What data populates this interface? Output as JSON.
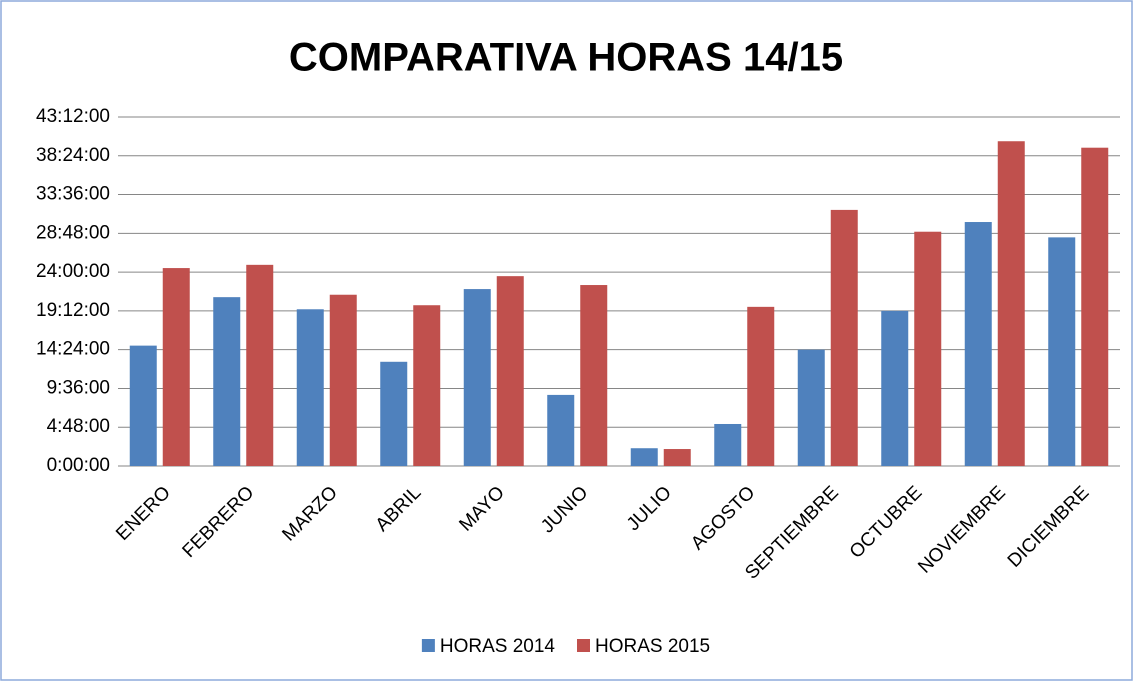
{
  "chart_data": {
    "type": "bar",
    "title": "COMPARATIVA HORAS 14/15",
    "categories": [
      "ENERO",
      "FEBRERO",
      "MARZO",
      "ABRIL",
      "MAYO",
      "JUNIO",
      "JULIO",
      "AGOSTO",
      "SEPTIEMBRE",
      "OCTUBRE",
      "NOVIEMBRE",
      "DICIEMBRE"
    ],
    "series": [
      {
        "name": "HORAS 2014",
        "color": "#4f81bd",
        "values": [
          14.9,
          20.9,
          19.4,
          12.9,
          21.9,
          8.8,
          2.2,
          5.2,
          14.4,
          19.2,
          30.2,
          28.3
        ]
      },
      {
        "name": "HORAS 2015",
        "color": "#c0504d",
        "values": [
          24.5,
          24.9,
          21.2,
          19.9,
          23.5,
          22.4,
          2.1,
          19.7,
          31.7,
          29.0,
          40.2,
          39.4
        ]
      }
    ],
    "ylim": [
      0,
      43.2
    ],
    "yticks": [
      {
        "value": 0,
        "label": "0:00:00"
      },
      {
        "value": 4.8,
        "label": "4:48:00"
      },
      {
        "value": 9.6,
        "label": "9:36:00"
      },
      {
        "value": 14.4,
        "label": "14:24:00"
      },
      {
        "value": 19.2,
        "label": "19:12:00"
      },
      {
        "value": 24,
        "label": "24:00:00"
      },
      {
        "value": 28.8,
        "label": "28:48:00"
      },
      {
        "value": 33.6,
        "label": "33:36:00"
      },
      {
        "value": 38.4,
        "label": "38:24:00"
      },
      {
        "value": 43.2,
        "label": "43:12:00"
      }
    ],
    "grid": true,
    "legend": "bottom"
  }
}
